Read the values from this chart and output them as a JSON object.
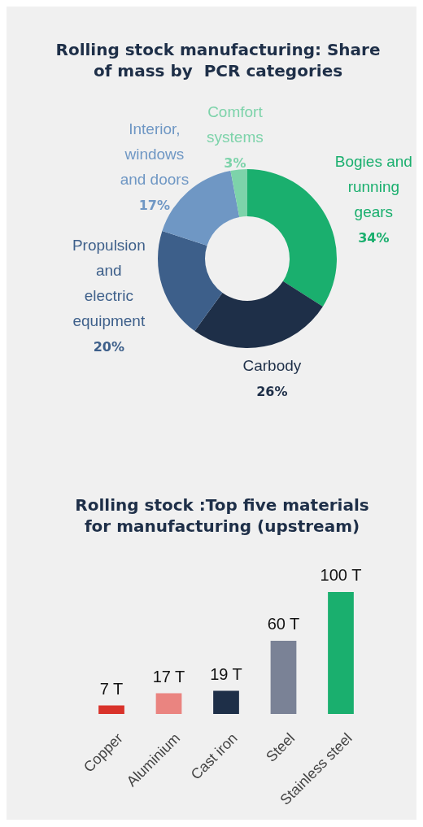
{
  "chart_data": [
    {
      "type": "donut",
      "title": "Rolling stock manufacturing: Share of mass by  PCR categories",
      "categories": [
        "Bogies and running gears",
        "Carbody",
        "Propulsion and electric equipment",
        "Interior, windows and doors",
        "Comfort systems"
      ],
      "values": [
        34,
        26,
        20,
        17,
        3
      ],
      "colors": [
        "#1aaf6e",
        "#1e2f48",
        "#3d5f8a",
        "#6f97c4",
        "#7dd3aa"
      ],
      "value_labels": [
        "34%",
        "26%",
        "20%",
        "17%",
        "3%"
      ]
    },
    {
      "type": "bar",
      "title": "Rolling stock :Top five materials for manufacturing (upstream)",
      "categories": [
        "Copper",
        "Aluminium",
        "Cast iron",
        "Steel",
        "Stainless steel"
      ],
      "values": [
        7,
        17,
        19,
        60,
        100
      ],
      "colors": [
        "#d9322a",
        "#ea8480",
        "#1e2f48",
        "#7a8296",
        "#1aaf6e"
      ],
      "value_labels": [
        "7 T",
        "17 T",
        "19 T",
        "60 T",
        "100 T"
      ]
    }
  ]
}
